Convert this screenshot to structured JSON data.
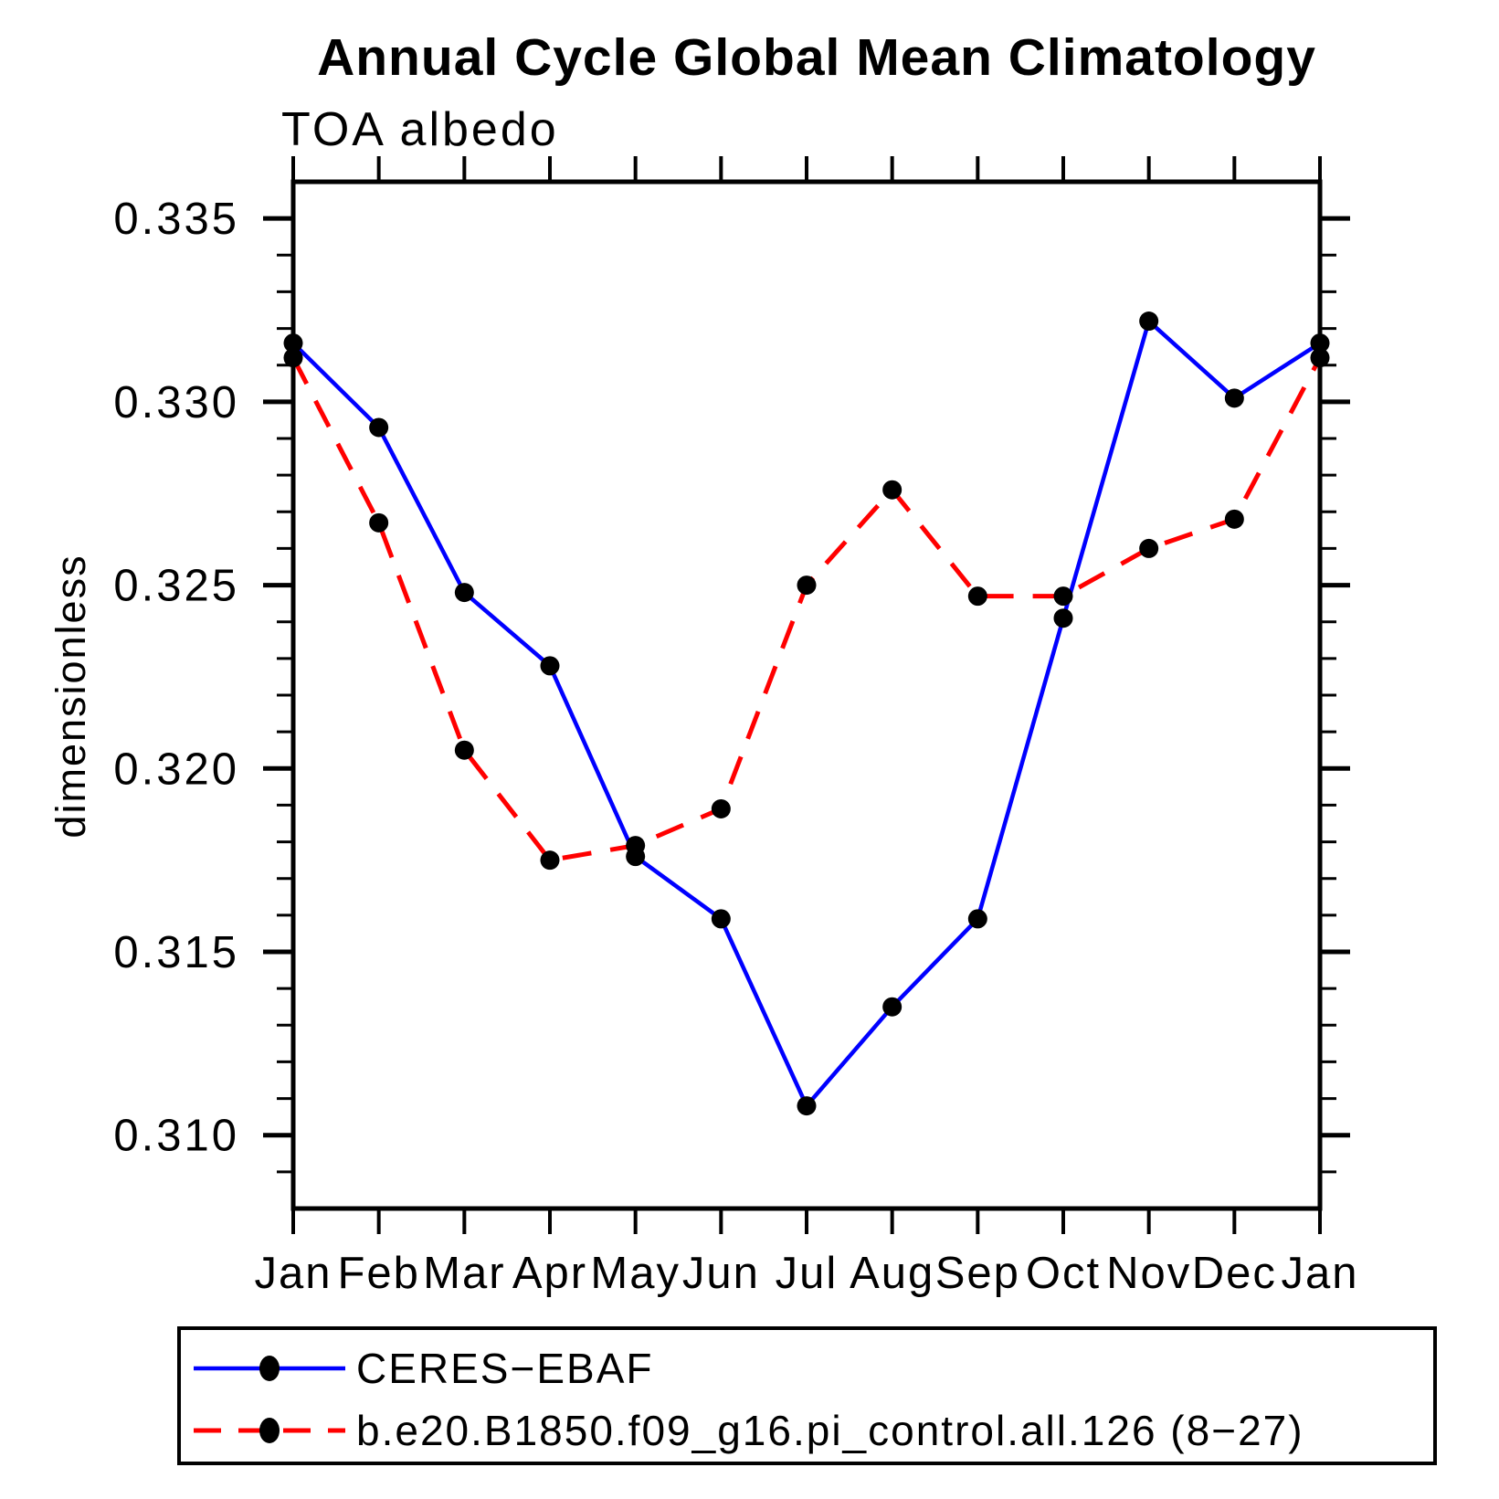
{
  "page": {
    "background": "#ffffff"
  },
  "header": {
    "title": "Annual Cycle Global Mean Climatology",
    "subtitle": "TOA albedo"
  },
  "chart_data": {
    "type": "line",
    "title": "Annual Cycle Global Mean Climatology",
    "subtitle": "TOA albedo",
    "xlabel": "",
    "ylabel": "dimensionless",
    "x_categories": [
      "Jan",
      "Feb",
      "Mar",
      "Apr",
      "May",
      "Jun",
      "Jul",
      "Aug",
      "Sep",
      "Oct",
      "Nov",
      "Dec",
      "Jan"
    ],
    "ylim": [
      0.308,
      0.336
    ],
    "yticks_major": [
      0.31,
      0.315,
      0.32,
      0.325,
      0.33,
      0.335
    ],
    "ytick_labels": [
      "0.310",
      "0.315",
      "0.320",
      "0.325",
      "0.330",
      "0.335"
    ],
    "minor_tick_step": 0.001,
    "grid": false,
    "legend_position": "bottom-left-box",
    "axis_color": "#000000",
    "marker_color": "#000000",
    "series": [
      {
        "name": "CERES−EBAF",
        "color": "#0000ff",
        "line_style": "solid",
        "marker": "circle",
        "values": [
          0.3316,
          0.3293,
          0.3248,
          0.3228,
          0.3176,
          0.3159,
          0.3108,
          0.3135,
          0.3159,
          0.3241,
          0.3322,
          0.3301,
          0.3316
        ]
      },
      {
        "name": "b.e20.B1850.f09_g16.pi_control.all.126 (8−27)",
        "color": "#ff0000",
        "line_style": "dashed",
        "marker": "circle",
        "values": [
          0.3312,
          0.3267,
          0.3205,
          0.3175,
          0.3179,
          0.3189,
          0.325,
          0.3276,
          0.3247,
          0.3247,
          0.326,
          0.3268,
          0.3312
        ]
      }
    ]
  }
}
